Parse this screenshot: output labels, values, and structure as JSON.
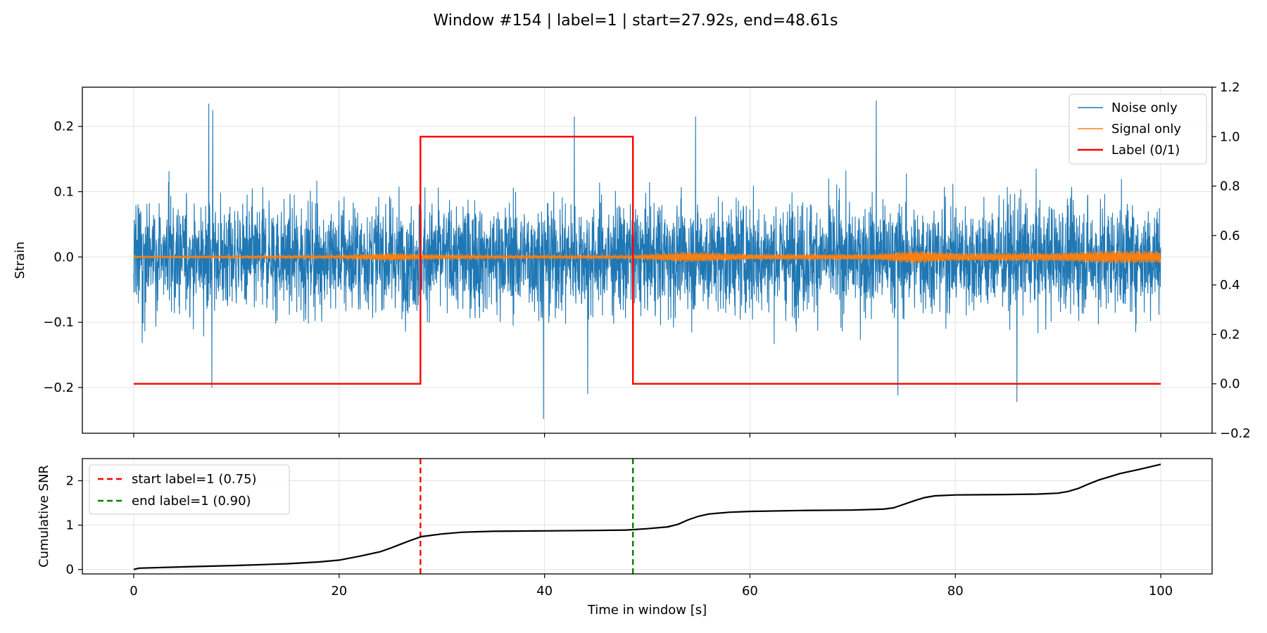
{
  "figure": {
    "title": "Window #154 | label=1 | start=27.92s, end=48.61s"
  },
  "chart_data": [
    {
      "type": "line",
      "panel": "strain",
      "ylabel": "Strain",
      "xlim": [
        -5,
        105
      ],
      "ylim": [
        -0.27,
        0.26
      ],
      "yticks": [
        -0.2,
        -0.1,
        0.0,
        0.1,
        0.2
      ],
      "ytick_labels": [
        "−0.2",
        "−0.1",
        "0.0",
        "0.1",
        "0.2"
      ],
      "xticks": [
        0,
        20,
        40,
        60,
        80,
        100
      ],
      "x_tick_labels_shown": false,
      "secondary_y": {
        "ylim": [
          -0.2,
          1.2
        ],
        "yticks": [
          -0.2,
          0.0,
          0.2,
          0.4,
          0.6,
          0.8,
          1.0,
          1.2
        ],
        "ytick_labels": [
          "−0.2",
          "0.0",
          "0.2",
          "0.4",
          "0.6",
          "0.8",
          "1.0",
          "1.2"
        ]
      },
      "grid": true,
      "legend": {
        "placement": "upper-right",
        "entries": [
          {
            "label": "Noise only",
            "color": "#1f77b4"
          },
          {
            "label": "Signal only",
            "color": "#ff7f0e"
          },
          {
            "label": "Label (0/1)",
            "color": "#ff0000"
          }
        ]
      },
      "series": [
        {
          "name": "Noise only",
          "color": "#1f77b4",
          "x_range": [
            0,
            100
          ],
          "typical_amplitude": 0.1,
          "peaks": [
            {
              "x": 7.3,
              "y": 0.235
            },
            {
              "x": 7.7,
              "y": 0.225
            },
            {
              "x": 42.9,
              "y": 0.215
            },
            {
              "x": 54.7,
              "y": 0.215
            },
            {
              "x": 72.3,
              "y": 0.24
            },
            {
              "x": 39.9,
              "y": -0.248
            },
            {
              "x": 86.0,
              "y": -0.222
            },
            {
              "x": 74.4,
              "y": -0.212
            },
            {
              "x": 44.2,
              "y": -0.21
            },
            {
              "x": 7.6,
              "y": -0.2
            }
          ]
        },
        {
          "name": "Signal only",
          "color": "#ff7f0e",
          "x_range": [
            0,
            100
          ],
          "envelope": [
            [
              0,
              0.001
            ],
            [
              20,
              0.002
            ],
            [
              25,
              0.006
            ],
            [
              28,
              0.004
            ],
            [
              35,
              0.002
            ],
            [
              48,
              0.002
            ],
            [
              54,
              0.008
            ],
            [
              60,
              0.004
            ],
            [
              72,
              0.004
            ],
            [
              76,
              0.01
            ],
            [
              80,
              0.006
            ],
            [
              90,
              0.006
            ],
            [
              95,
              0.01
            ],
            [
              100,
              0.009
            ]
          ]
        },
        {
          "name": "Label (0/1)",
          "axis": "secondary",
          "color": "#ff0000",
          "x": [
            0,
            27.92,
            27.92,
            48.61,
            48.61,
            100
          ],
          "y": [
            0,
            0,
            1,
            1,
            0,
            0
          ]
        }
      ]
    },
    {
      "type": "line",
      "panel": "snr",
      "ylabel": "Cumulative SNR",
      "xlabel": "Time in window [s]",
      "xlim": [
        -5,
        105
      ],
      "ylim": [
        -0.1,
        2.5
      ],
      "yticks": [
        0,
        1,
        2
      ],
      "ytick_labels": [
        "0",
        "1",
        "2"
      ],
      "xticks": [
        0,
        20,
        40,
        60,
        80,
        100
      ],
      "xtick_labels": [
        "0",
        "20",
        "40",
        "60",
        "80",
        "100"
      ],
      "grid": true,
      "legend": {
        "placement": "upper-left",
        "entries": [
          {
            "label": "start label=1 (0.75)",
            "color": "#ff0000",
            "dash": true
          },
          {
            "label": "end label=1 (0.90)",
            "color": "#008000",
            "dash": true
          }
        ]
      },
      "vlines": [
        {
          "x": 27.92,
          "color": "#ff0000",
          "label": "start label=1 (0.75)"
        },
        {
          "x": 48.61,
          "color": "#008000",
          "label": "end label=1 (0.90)"
        }
      ],
      "series": [
        {
          "name": "Cumulative SNR",
          "color": "#000000",
          "x": [
            0,
            0.5,
            2,
            5,
            10,
            15,
            18,
            20,
            22,
            24,
            25,
            26,
            27,
            28,
            30,
            32,
            35,
            40,
            45,
            48,
            50,
            52,
            53,
            54,
            55,
            56,
            58,
            60,
            65,
            70,
            73,
            74,
            75,
            76,
            77,
            78,
            80,
            85,
            88,
            90,
            91,
            92,
            93,
            94,
            95,
            96,
            98,
            100
          ],
          "y": [
            0.0,
            0.03,
            0.04,
            0.06,
            0.09,
            0.13,
            0.17,
            0.21,
            0.3,
            0.4,
            0.48,
            0.57,
            0.66,
            0.74,
            0.8,
            0.84,
            0.86,
            0.87,
            0.88,
            0.89,
            0.92,
            0.96,
            1.02,
            1.12,
            1.2,
            1.25,
            1.29,
            1.31,
            1.33,
            1.34,
            1.36,
            1.39,
            1.47,
            1.55,
            1.62,
            1.66,
            1.68,
            1.69,
            1.7,
            1.72,
            1.76,
            1.83,
            1.93,
            2.02,
            2.09,
            2.16,
            2.26,
            2.37
          ]
        }
      ]
    }
  ]
}
